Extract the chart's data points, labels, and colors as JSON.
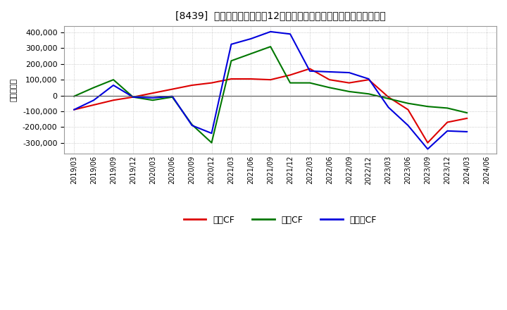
{
  "title": "[8439]  キャッシュフローの12か月移動合計の対前年同期増減額の推移",
  "ylabel": "（百万円）",
  "background_color": "#ffffff",
  "plot_bg_color": "#ffffff",
  "grid_color": "#aaaaaa",
  "ylim": [
    -370000,
    440000
  ],
  "yticks": [
    -300000,
    -200000,
    -100000,
    0,
    100000,
    200000,
    300000,
    400000
  ],
  "x_labels": [
    "2019/03",
    "2019/06",
    "2019/09",
    "2019/12",
    "2020/03",
    "2020/06",
    "2020/09",
    "2020/12",
    "2021/03",
    "2021/06",
    "2021/09",
    "2021/12",
    "2022/03",
    "2022/06",
    "2022/09",
    "2022/12",
    "2023/03",
    "2023/06",
    "2023/09",
    "2023/12",
    "2024/03",
    "2024/06"
  ],
  "series": {
    "営業CF": {
      "color": "#dd0000",
      "values": [
        -90000,
        -60000,
        -30000,
        -10000,
        15000,
        40000,
        65000,
        80000,
        105000,
        105000,
        100000,
        130000,
        170000,
        100000,
        80000,
        100000,
        -10000,
        -90000,
        -300000,
        -170000,
        -145000,
        null
      ]
    },
    "投資CF": {
      "color": "#007700",
      "values": [
        -5000,
        50000,
        100000,
        -10000,
        -30000,
        -10000,
        -185000,
        -300000,
        220000,
        265000,
        310000,
        80000,
        80000,
        50000,
        25000,
        10000,
        -20000,
        -50000,
        -70000,
        -80000,
        -110000,
        null
      ]
    },
    "フリーCF": {
      "color": "#0000dd",
      "values": [
        -90000,
        -30000,
        65000,
        -10000,
        -15000,
        -5000,
        -190000,
        -240000,
        325000,
        360000,
        405000,
        390000,
        155000,
        150000,
        145000,
        105000,
        -75000,
        -190000,
        -340000,
        -225000,
        -230000,
        null
      ]
    }
  },
  "legend_labels": [
    "営業CF",
    "投資CF",
    "フリーCF"
  ],
  "legend_colors": [
    "#dd0000",
    "#007700",
    "#0000dd"
  ]
}
